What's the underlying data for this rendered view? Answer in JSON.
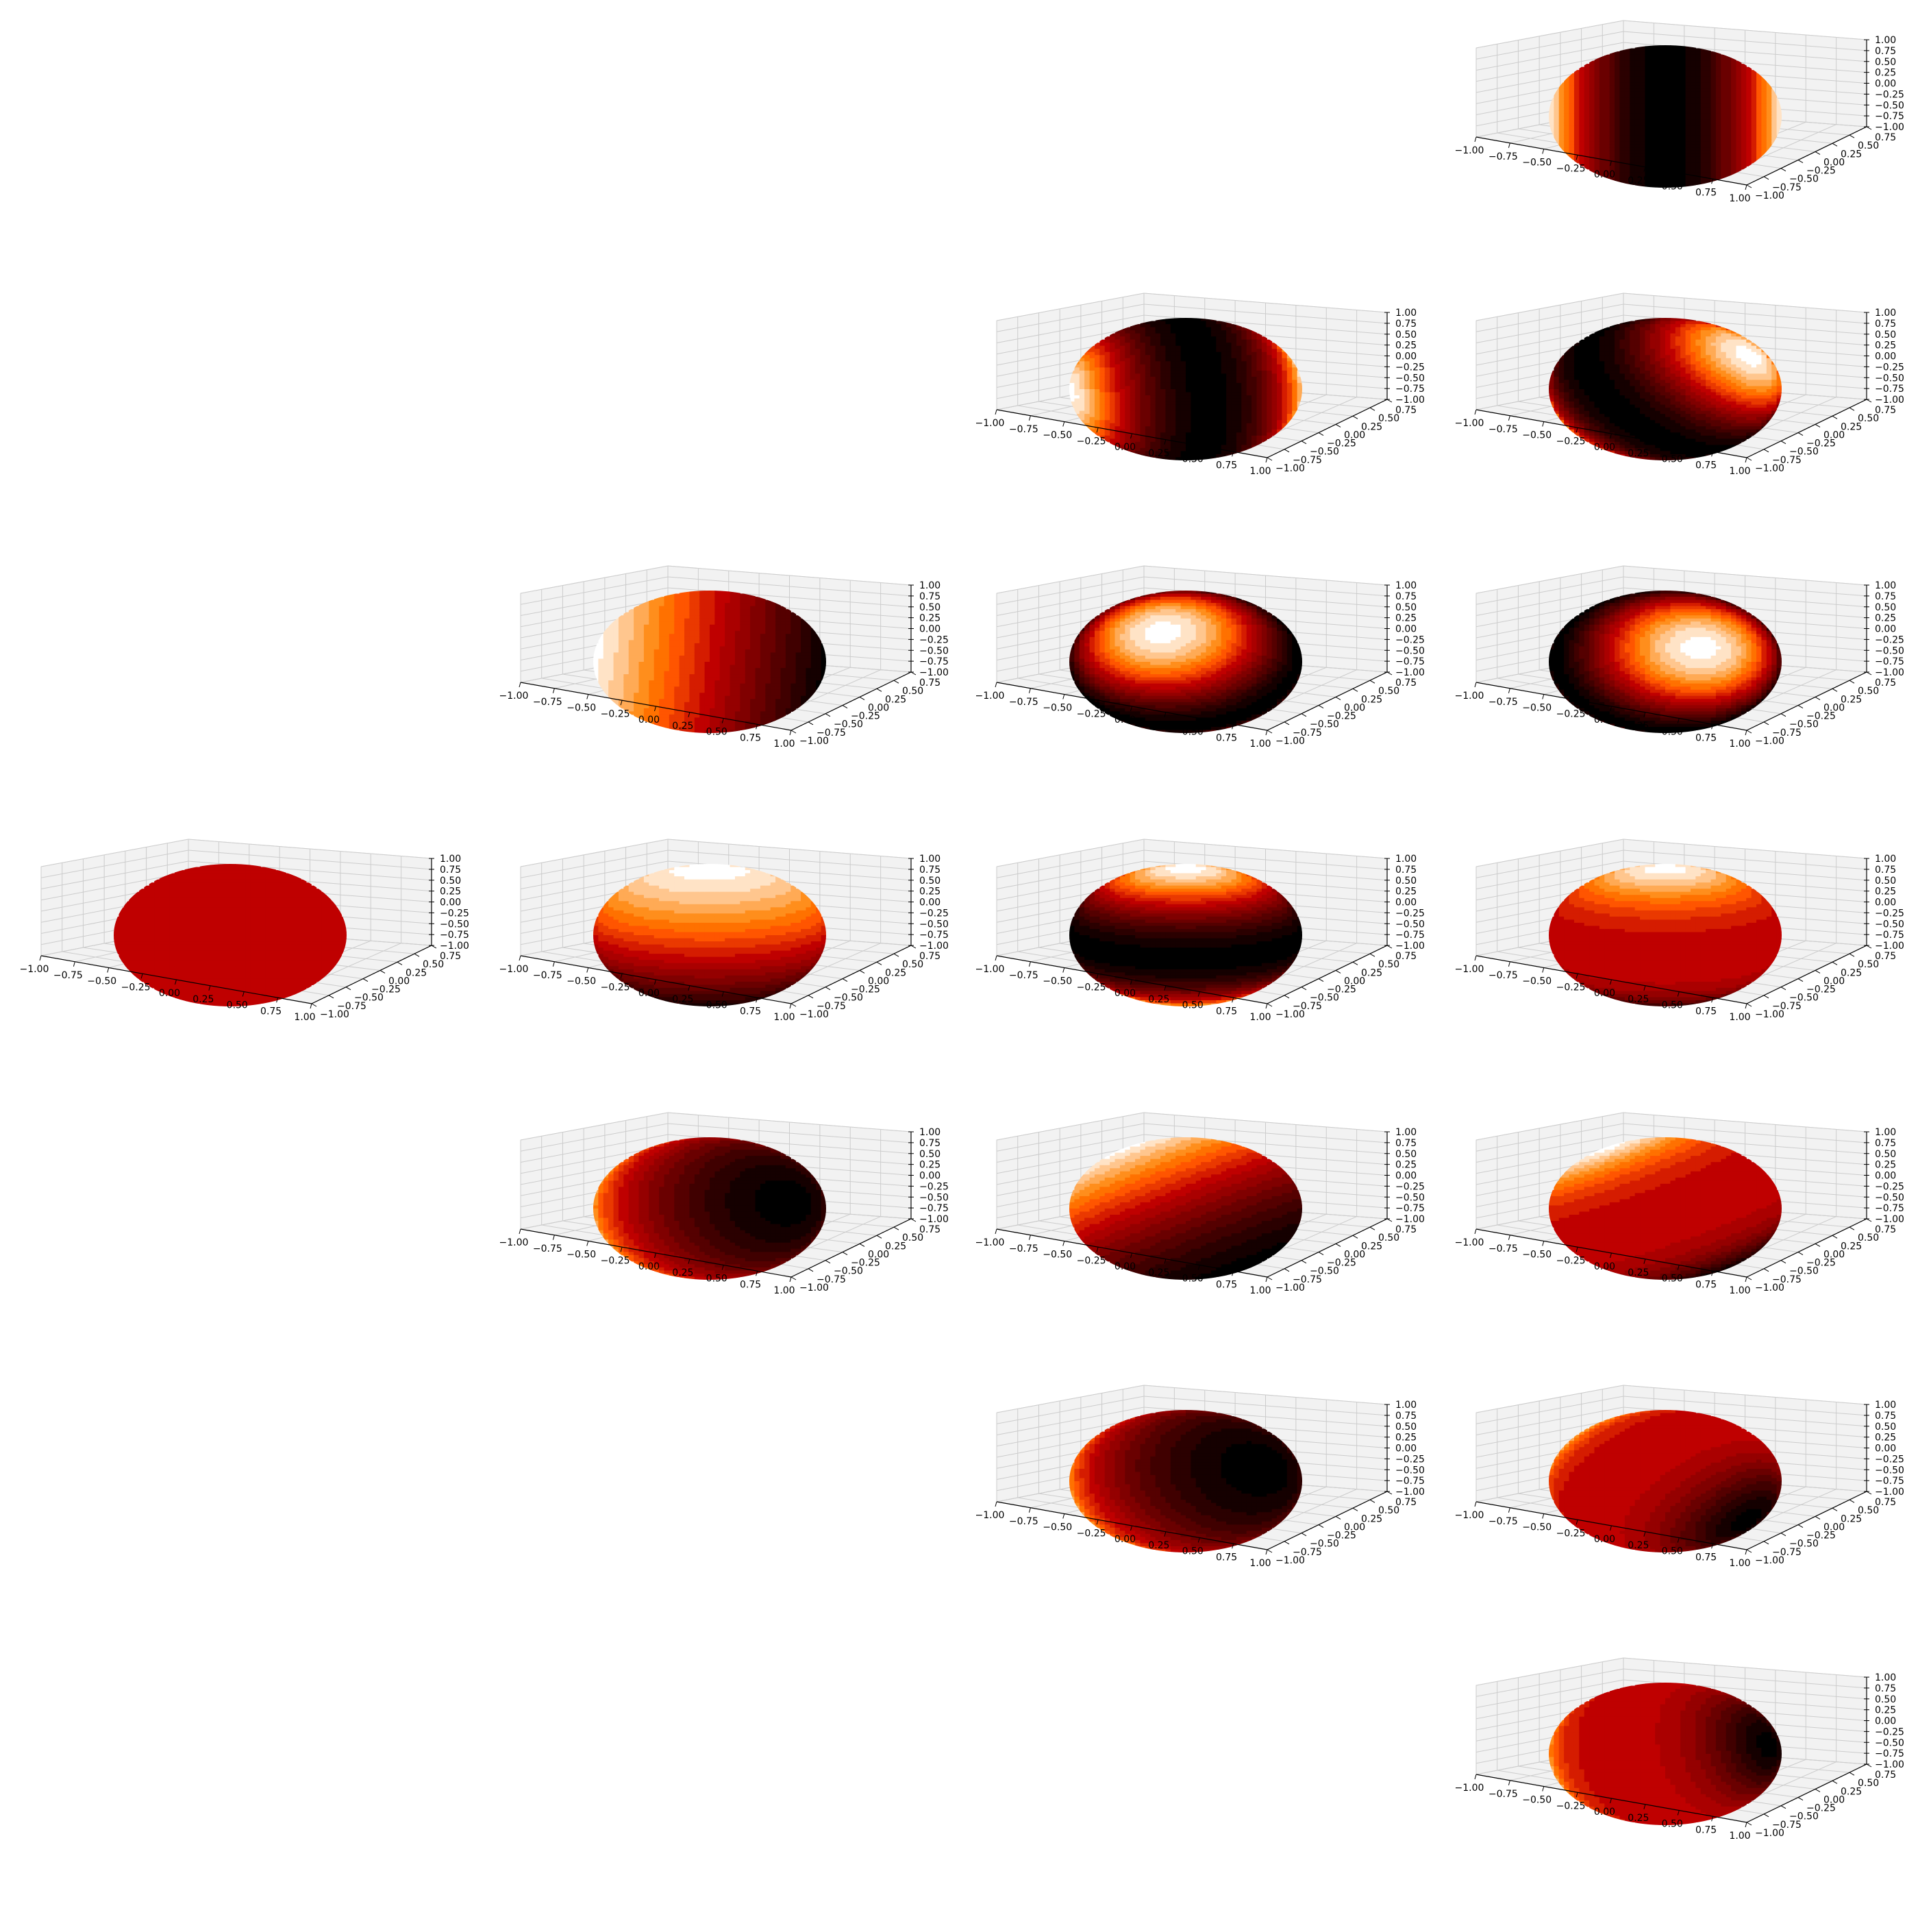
{
  "figure": {
    "colormap": "gist_heat",
    "pane_color": "#f2f2f2",
    "grid_color": "#cccccc",
    "axis_line_color": "#000000",
    "background": "#ffffff"
  },
  "chart_data": [
    {
      "type": "surface",
      "grid_row": 3,
      "grid_col": 0,
      "title": "",
      "shading": "uniform",
      "uniform_value": 0.5,
      "xlim": [
        -1,
        1
      ],
      "ylim": [
        -1,
        1
      ],
      "zlim": [
        -1,
        1
      ],
      "xticks": [
        "−1.00",
        "−0.75",
        "−0.50",
        "−0.25",
        "0.00",
        "0.25",
        "0.50",
        "0.75",
        "1.00"
      ],
      "yticks": [
        "−1.00",
        "−0.75",
        "−0.50",
        "−0.25",
        "0.00",
        "0.25",
        "0.50",
        "0.75"
      ],
      "zticks": [
        "−1.00",
        "−0.75",
        "−0.50",
        "−0.25",
        "0.00",
        "0.25",
        "0.50",
        "0.75",
        "1.00"
      ]
    },
    {
      "type": "surface",
      "grid_row": 2,
      "grid_col": 1,
      "title": "",
      "shading": "linear",
      "dir": [
        -1,
        0,
        0.1
      ],
      "gamma": 1.0,
      "xlim": [
        -1,
        1
      ],
      "ylim": [
        -1,
        1
      ],
      "zlim": [
        -1,
        1
      ],
      "xticks": [
        "−1.00",
        "−0.75",
        "−0.50",
        "−0.25",
        "0.00",
        "0.25",
        "0.50",
        "0.75",
        "1.00"
      ],
      "yticks": [
        "−1.00",
        "−0.75",
        "−0.50",
        "−0.25",
        "0.00",
        "0.25",
        "0.50",
        "0.75"
      ],
      "zticks": [
        "−1.00",
        "−0.75",
        "−0.50",
        "−0.25",
        "0.00",
        "0.25",
        "0.50",
        "0.75",
        "1.00"
      ]
    },
    {
      "type": "surface",
      "grid_row": 3,
      "grid_col": 1,
      "title": "",
      "shading": "linear",
      "dir": [
        0,
        0,
        1
      ],
      "gamma": 1.0,
      "xlim": [
        -1,
        1
      ],
      "ylim": [
        -1,
        1
      ],
      "zlim": [
        -1,
        1
      ],
      "xticks": [
        "−1.00",
        "−0.75",
        "−0.50",
        "−0.25",
        "0.00",
        "0.25",
        "0.50",
        "0.75",
        "1.00"
      ],
      "yticks": [
        "−1.00",
        "−0.75",
        "−0.50",
        "−0.25",
        "0.00",
        "0.25",
        "0.50",
        "0.75"
      ],
      "zticks": [
        "−1.00",
        "−0.75",
        "−0.50",
        "−0.25",
        "0.00",
        "0.25",
        "0.50",
        "0.75",
        "1.00"
      ]
    },
    {
      "type": "surface",
      "grid_row": 4,
      "grid_col": 1,
      "title": "",
      "shading": "linear",
      "dir": [
        -0.6,
        -0.6,
        -0.3
      ],
      "gamma": 1.0,
      "xlim": [
        -1,
        1
      ],
      "ylim": [
        -1,
        1
      ],
      "zlim": [
        -1,
        1
      ],
      "xticks": [
        "−1.00",
        "−0.75",
        "−0.50",
        "−0.25",
        "0.00",
        "0.25",
        "0.50",
        "0.75",
        "1.00"
      ],
      "yticks": [
        "−1.00",
        "−0.75",
        "−0.50",
        "−0.25",
        "0.00",
        "0.25",
        "0.50",
        "0.75"
      ],
      "zticks": [
        "−1.00",
        "−0.75",
        "−0.50",
        "−0.25",
        "0.00",
        "0.25",
        "0.50",
        "0.75",
        "1.00"
      ]
    },
    {
      "type": "surface",
      "grid_row": 1,
      "grid_col": 2,
      "title": "",
      "shading": "quadratic",
      "dir": [
        -1,
        0.2,
        0
      ],
      "gamma": 1.0,
      "xlim": [
        -1,
        1
      ],
      "ylim": [
        -1,
        1
      ],
      "zlim": [
        -1,
        1
      ],
      "xticks": [
        "−1.00",
        "−0.75",
        "−0.50",
        "−0.25",
        "0.00",
        "0.25",
        "0.50",
        "0.75",
        "1.00"
      ],
      "yticks": [
        "−1.00",
        "−0.75",
        "−0.50",
        "−0.25",
        "0.00",
        "0.25",
        "0.50",
        "0.75"
      ],
      "zticks": [
        "−1.00",
        "−0.75",
        "−0.50",
        "−0.25",
        "0.00",
        "0.25",
        "0.50",
        "0.75",
        "1.00"
      ]
    },
    {
      "type": "surface",
      "grid_row": 2,
      "grid_col": 2,
      "title": "",
      "shading": "quadratic",
      "dir": [
        0.2,
        -0.7,
        -0.7
      ],
      "gamma": 1.0,
      "xlim": [
        -1,
        1
      ],
      "ylim": [
        -1,
        1
      ],
      "zlim": [
        -1,
        1
      ],
      "xticks": [
        "−1.00",
        "−0.75",
        "−0.50",
        "−0.25",
        "0.00",
        "0.25",
        "0.50",
        "0.75",
        "1.00"
      ],
      "yticks": [
        "−1.00",
        "−0.75",
        "−0.50",
        "−0.25",
        "0.00",
        "0.25",
        "0.50",
        "0.75"
      ],
      "zticks": [
        "−1.00",
        "−0.75",
        "−0.50",
        "−0.25",
        "0.00",
        "0.25",
        "0.50",
        "0.75",
        "1.00"
      ]
    },
    {
      "type": "surface",
      "grid_row": 3,
      "grid_col": 2,
      "title": "",
      "shading": "quadratic",
      "dir": [
        0,
        0,
        1
      ],
      "gamma": 1.0,
      "xlim": [
        -1,
        1
      ],
      "ylim": [
        -1,
        1
      ],
      "zlim": [
        -1,
        1
      ],
      "xticks": [
        "−1.00",
        "−0.75",
        "−0.50",
        "−0.25",
        "0.00",
        "0.25",
        "0.50",
        "0.75",
        "1.00"
      ],
      "yticks": [
        "−1.00",
        "−0.75",
        "−0.50",
        "−0.25",
        "0.00",
        "0.25",
        "0.50",
        "0.75"
      ],
      "zticks": [
        "−1.00",
        "−0.75",
        "−0.50",
        "−0.25",
        "0.00",
        "0.25",
        "0.50",
        "0.75",
        "1.00"
      ]
    },
    {
      "type": "surface",
      "grid_row": 4,
      "grid_col": 2,
      "title": "",
      "shading": "linear",
      "dir": [
        -0.5,
        -0.3,
        0.7
      ],
      "gamma": 1.3,
      "xlim": [
        -1,
        1
      ],
      "ylim": [
        -1,
        1
      ],
      "zlim": [
        -1,
        1
      ],
      "xticks": [
        "−1.00",
        "−0.75",
        "−0.50",
        "−0.25",
        "0.00",
        "0.25",
        "0.50",
        "0.75",
        "1.00"
      ],
      "yticks": [
        "−1.00",
        "−0.75",
        "−0.50",
        "−0.25",
        "0.00",
        "0.25",
        "0.50",
        "0.75"
      ],
      "zticks": [
        "−1.00",
        "−0.75",
        "−0.50",
        "−0.25",
        "0.00",
        "0.25",
        "0.50",
        "0.75",
        "1.00"
      ]
    },
    {
      "type": "surface",
      "grid_row": 5,
      "grid_col": 2,
      "title": "",
      "shading": "linear",
      "dir": [
        -0.6,
        -0.6,
        -0.4
      ],
      "gamma": 1.1,
      "xlim": [
        -1,
        1
      ],
      "ylim": [
        -1,
        1
      ],
      "zlim": [
        -1,
        1
      ],
      "xticks": [
        "−1.00",
        "−0.75",
        "−0.50",
        "−0.25",
        "0.00",
        "0.25",
        "0.50",
        "0.75",
        "1.00"
      ],
      "yticks": [
        "−1.00",
        "−0.75",
        "−0.50",
        "−0.25",
        "0.00",
        "0.25",
        "0.50",
        "0.75"
      ],
      "zticks": [
        "−1.00",
        "−0.75",
        "−0.50",
        "−0.25",
        "0.00",
        "0.25",
        "0.50",
        "0.75",
        "1.00"
      ]
    },
    {
      "type": "surface",
      "grid_row": 0,
      "grid_col": 3,
      "title": "",
      "shading": "quadratic",
      "dir": [
        -1,
        0,
        0
      ],
      "gamma": 1.0,
      "xlim": [
        -1,
        1
      ],
      "ylim": [
        -1,
        1
      ],
      "zlim": [
        -1,
        1
      ],
      "xticks": [
        "−1.00",
        "−0.75",
        "−0.50",
        "−0.25",
        "0.00",
        "0.25",
        "0.50",
        "0.75",
        "1.00"
      ],
      "yticks": [
        "−1.00",
        "−0.75",
        "−0.50",
        "−0.25",
        "0.00",
        "0.25",
        "0.50",
        "0.75"
      ],
      "zticks": [
        "−1.00",
        "−0.75",
        "−0.50",
        "−0.25",
        "0.00",
        "0.25",
        "0.50",
        "0.75",
        "1.00"
      ]
    },
    {
      "type": "surface",
      "grid_row": 1,
      "grid_col": 3,
      "title": "",
      "shading": "quadratic",
      "dir": [
        -0.7,
        -0.3,
        -0.6
      ],
      "gamma": 1.0,
      "xlim": [
        -1,
        1
      ],
      "ylim": [
        -1,
        1
      ],
      "zlim": [
        -1,
        1
      ],
      "xticks": [
        "−1.00",
        "−0.75",
        "−0.50",
        "−0.25",
        "0.00",
        "0.25",
        "0.50",
        "0.75",
        "1.00"
      ],
      "yticks": [
        "−1.00",
        "−0.75",
        "−0.50",
        "−0.25",
        "0.00",
        "0.25",
        "0.50",
        "0.75"
      ],
      "zticks": [
        "−1.00",
        "−0.75",
        "−0.50",
        "−0.25",
        "0.00",
        "0.25",
        "0.50",
        "0.75",
        "1.00"
      ]
    },
    {
      "type": "surface",
      "grid_row": 2,
      "grid_col": 3,
      "title": "",
      "shading": "quadratic",
      "dir": [
        -0.3,
        -0.8,
        -0.5
      ],
      "gamma": 1.0,
      "xlim": [
        -1,
        1
      ],
      "ylim": [
        -1,
        1
      ],
      "zlim": [
        -1,
        1
      ],
      "xticks": [
        "−1.00",
        "−0.75",
        "−0.50",
        "−0.25",
        "0.00",
        "0.25",
        "0.50",
        "0.75",
        "1.00"
      ],
      "yticks": [
        "−1.00",
        "−0.75",
        "−0.50",
        "−0.25",
        "0.00",
        "0.25",
        "0.50",
        "0.75"
      ],
      "zticks": [
        "−1.00",
        "−0.75",
        "−0.50",
        "−0.25",
        "0.00",
        "0.25",
        "0.50",
        "0.75",
        "1.00"
      ]
    },
    {
      "type": "surface",
      "grid_row": 3,
      "grid_col": 3,
      "title": "",
      "shading": "cubic",
      "dir": [
        0,
        0,
        1
      ],
      "gamma": 1.0,
      "xlim": [
        -1,
        1
      ],
      "ylim": [
        -1,
        1
      ],
      "zlim": [
        -1,
        1
      ],
      "xticks": [
        "−1.00",
        "−0.75",
        "−0.50",
        "−0.25",
        "0.00",
        "0.25",
        "0.50",
        "0.75",
        "1.00"
      ],
      "yticks": [
        "−1.00",
        "−0.75",
        "−0.50",
        "−0.25",
        "0.00",
        "0.25",
        "0.50",
        "0.75"
      ],
      "zticks": [
        "−1.00",
        "−0.75",
        "−0.50",
        "−0.25",
        "0.00",
        "0.25",
        "0.50",
        "0.75",
        "1.00"
      ]
    },
    {
      "type": "surface",
      "grid_row": 4,
      "grid_col": 3,
      "title": "",
      "shading": "cubic",
      "dir": [
        -0.5,
        -0.2,
        0.8
      ],
      "gamma": 1.0,
      "xlim": [
        -1,
        1
      ],
      "ylim": [
        -1,
        1
      ],
      "zlim": [
        -1,
        1
      ],
      "xticks": [
        "−1.00",
        "−0.75",
        "−0.50",
        "−0.25",
        "0.00",
        "0.25",
        "0.50",
        "0.75",
        "1.00"
      ],
      "yticks": [
        "−1.00",
        "−0.75",
        "−0.50",
        "−0.25",
        "0.00",
        "0.25",
        "0.50",
        "0.75"
      ],
      "zticks": [
        "−1.00",
        "−0.75",
        "−0.50",
        "−0.25",
        "0.00",
        "0.25",
        "0.50",
        "0.75",
        "1.00"
      ]
    },
    {
      "type": "surface",
      "grid_row": 5,
      "grid_col": 3,
      "title": "",
      "shading": "cubic",
      "dir": [
        -0.6,
        -0.5,
        0.3
      ],
      "gamma": 1.0,
      "xlim": [
        -1,
        1
      ],
      "ylim": [
        -1,
        1
      ],
      "zlim": [
        -1,
        1
      ],
      "xticks": [
        "−1.00",
        "−0.75",
        "−0.50",
        "−0.25",
        "0.00",
        "0.25",
        "0.50",
        "0.75",
        "1.00"
      ],
      "yticks": [
        "−1.00",
        "−0.75",
        "−0.50",
        "−0.25",
        "0.00",
        "0.25",
        "0.50",
        "0.75"
      ],
      "zticks": [
        "−1.00",
        "−0.75",
        "−0.50",
        "−0.25",
        "0.00",
        "0.25",
        "0.50",
        "0.75",
        "1.00"
      ]
    },
    {
      "type": "surface",
      "grid_row": 6,
      "grid_col": 3,
      "title": "",
      "shading": "cubic",
      "dir": [
        -1,
        -0.4,
        -0.3
      ],
      "gamma": 1.0,
      "xlim": [
        -1,
        1
      ],
      "ylim": [
        -1,
        1
      ],
      "zlim": [
        -1,
        1
      ],
      "xticks": [
        "−1.00",
        "−0.75",
        "−0.50",
        "−0.25",
        "0.00",
        "0.25",
        "0.50",
        "0.75",
        "1.00"
      ],
      "yticks": [
        "−1.00",
        "−0.75",
        "−0.50",
        "−0.25",
        "0.00",
        "0.25",
        "0.50",
        "0.75"
      ],
      "zticks": [
        "−1.00",
        "−0.75",
        "−0.50",
        "−0.25",
        "0.00",
        "0.25",
        "0.50",
        "0.75",
        "1.00"
      ]
    }
  ]
}
